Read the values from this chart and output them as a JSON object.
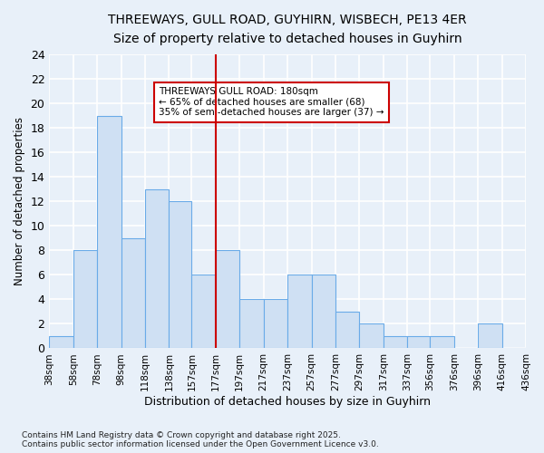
{
  "title_line1": "THREEWAYS, GULL ROAD, GUYHIRN, WISBECH, PE13 4ER",
  "title_line2": "Size of property relative to detached houses in Guyhirn",
  "xlabel": "Distribution of detached houses by size in Guyhirn",
  "ylabel": "Number of detached properties",
  "bin_edges": [
    38,
    58,
    78,
    98,
    118,
    138,
    157,
    177,
    197,
    217,
    237,
    257,
    277,
    297,
    317,
    337,
    356,
    376,
    396,
    416,
    436
  ],
  "tick_labels": [
    "38sqm",
    "58sqm",
    "78sqm",
    "98sqm",
    "118sqm",
    "138sqm",
    "157sqm",
    "177sqm",
    "197sqm",
    "217sqm",
    "237sqm",
    "257sqm",
    "277sqm",
    "297sqm",
    "317sqm",
    "337sqm",
    "356sqm",
    "376sqm",
    "396sqm",
    "416sqm",
    "436sqm"
  ],
  "values": [
    1,
    8,
    19,
    9,
    13,
    12,
    6,
    8,
    4,
    4,
    6,
    6,
    3,
    2,
    1,
    1,
    1,
    0,
    2,
    0
  ],
  "bar_color": "#cfe0f3",
  "bar_edge_color": "#6aabe8",
  "vline_x": 177,
  "vline_color": "#cc0000",
  "annotation_title": "THREEWAYS GULL ROAD: 180sqm",
  "annotation_line2": "← 65% of detached houses are smaller (68)",
  "annotation_line3": "35% of semi-detached houses are larger (37) →",
  "annotation_box_color": "#cc0000",
  "annotation_fill": "#ffffff",
  "ylim": [
    0,
    24
  ],
  "yticks": [
    0,
    2,
    4,
    6,
    8,
    10,
    12,
    14,
    16,
    18,
    20,
    22,
    24
  ],
  "bg_color": "#e8f0f9",
  "grid_color": "#ffffff",
  "title1_fontsize": 10,
  "title2_fontsize": 9,
  "footer": "Contains HM Land Registry data © Crown copyright and database right 2025.\nContains public sector information licensed under the Open Government Licence v3.0."
}
